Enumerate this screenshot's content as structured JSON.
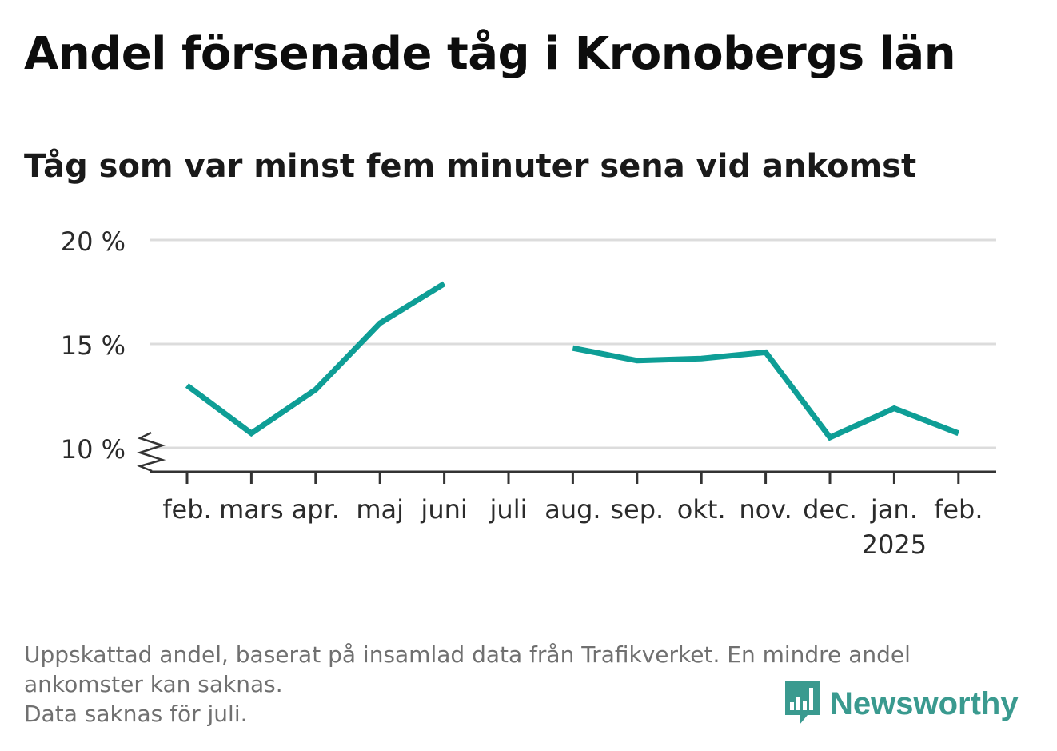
{
  "title": "Andel försenade tåg i Kronobergs län",
  "subtitle": "Tåg som var minst fem minuter sena vid ankomst",
  "footnote_lines": [
    "Uppskattad andel, baserat på insamlad data från Trafikverket. En mindre andel ankomster kan saknas.",
    "Data saknas för juli."
  ],
  "brand": {
    "name": "Newsworthy",
    "color": "#3a9a8f",
    "icon": "newsworthy-chart-icon"
  },
  "chart_data": {
    "type": "line",
    "categories": [
      "feb.",
      "mars",
      "apr.",
      "maj",
      "juni",
      "juli",
      "aug.",
      "sep.",
      "okt.",
      "nov.",
      "dec.",
      "jan.",
      "feb."
    ],
    "year_label": {
      "index": 11,
      "text": "2025"
    },
    "series": [
      {
        "color": "#0e9e96",
        "values": [
          13.0,
          10.7,
          12.8,
          16.0,
          17.9,
          null,
          14.8,
          14.2,
          14.3,
          14.6,
          10.5,
          11.9,
          10.7
        ]
      }
    ],
    "yticks": [
      10,
      15,
      20
    ],
    "ytick_labels": [
      "10 %",
      "15 %",
      "20 %"
    ],
    "ylim": [
      8.9,
      20
    ],
    "axis_break": true,
    "grid": true,
    "xlabel": "",
    "ylabel": "",
    "grid_color": "#dcdcdc",
    "axis_color": "#333333"
  }
}
